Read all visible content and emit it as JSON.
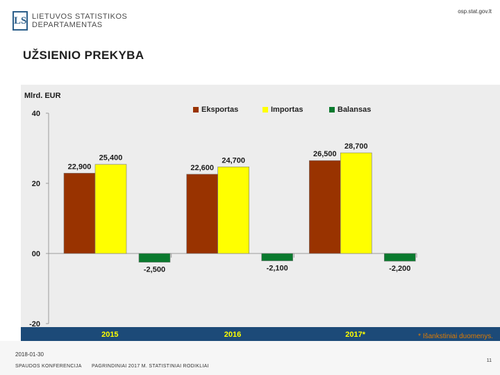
{
  "header": {
    "logo_letters": "LS",
    "org_line1": "LIETUVOS STATISTIKOS",
    "org_line2": "DEPARTAMENTAS",
    "url": "osp.stat.gov.lt"
  },
  "slide": {
    "title": "UŽSIENIO PREKYBA",
    "note": "* Išankstiniai duomenys."
  },
  "footer": {
    "date": "2018-01-30",
    "left": "SPAUDOS KONFERENCIJA",
    "center": "PAGRINDINIAI 2017 M. STATISTINIAI RODIKLIAI",
    "page": "11"
  },
  "colors": {
    "eksportas": "#993300",
    "importas": "#ffff00",
    "balansas": "#0a7a2e",
    "axis_band": "#1c4a78",
    "category_label": "#ffff00"
  },
  "chart_data": {
    "type": "bar",
    "ylabel": "Mlrd. EUR",
    "ylim": [
      -20,
      40
    ],
    "yticks": [
      40,
      20,
      0,
      -20
    ],
    "ytick_labels": [
      "40",
      "20",
      "00",
      "-20"
    ],
    "categories": [
      "2015",
      "2016",
      "2017*"
    ],
    "legend_position": "top-right",
    "series": [
      {
        "name": "Eksportas",
        "values": [
          22.9,
          22.6,
          26.5
        ],
        "labels": [
          "22,900",
          "22,600",
          "26,500"
        ]
      },
      {
        "name": "Importas",
        "values": [
          25.4,
          24.7,
          28.7
        ],
        "labels": [
          "25,400",
          "24,700",
          "28,700"
        ]
      },
      {
        "name": "Balansas",
        "values": [
          -2.5,
          -2.1,
          -2.2
        ],
        "labels": [
          "-2,500",
          "-2,100",
          "-2,200"
        ]
      }
    ]
  }
}
